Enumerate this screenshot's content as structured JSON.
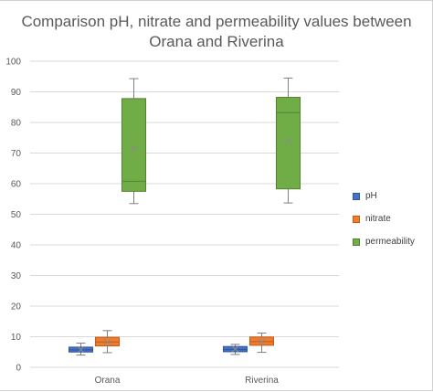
{
  "chart_data": {
    "type": "boxplot",
    "title_lines": [
      "Comparison pH, nitrate and permeability values between",
      "Orana and Riverina"
    ],
    "categories": [
      "Orana",
      "Riverina"
    ],
    "ylim": [
      0,
      100
    ],
    "yticks": [
      0,
      10,
      20,
      30,
      40,
      50,
      60,
      70,
      80,
      90,
      100
    ],
    "grid": true,
    "legend_position": "right",
    "series": [
      {
        "name": "pH",
        "color": "#4472c4",
        "stroke": "#2f5597",
        "boxes": [
          {
            "min": 4.0,
            "q1": 5.0,
            "median": 5.7,
            "mean": 5.8,
            "q3": 6.6,
            "max": 7.9
          },
          {
            "min": 4.2,
            "q1": 5.1,
            "median": 5.8,
            "mean": 6.0,
            "q3": 6.8,
            "max": 7.5
          }
        ]
      },
      {
        "name": "nitrate",
        "color": "#ed7d31",
        "stroke": "#c55a11",
        "boxes": [
          {
            "min": 4.8,
            "q1": 7.0,
            "median": 8.3,
            "mean": 8.3,
            "q3": 9.8,
            "max": 12.0
          },
          {
            "min": 4.9,
            "q1": 7.2,
            "median": 8.4,
            "mean": 8.3,
            "q3": 9.9,
            "max": 11.2
          }
        ]
      },
      {
        "name": "permeability",
        "color": "#70ad47",
        "stroke": "#548235",
        "boxes": [
          {
            "min": 53.5,
            "q1": 57.5,
            "median": 60.8,
            "mean": 71.5,
            "q3": 87.8,
            "max": 94.3
          },
          {
            "min": 53.7,
            "q1": 58.3,
            "median": 83.2,
            "mean": 73.9,
            "q3": 88.2,
            "max": 94.5
          }
        ]
      }
    ]
  }
}
